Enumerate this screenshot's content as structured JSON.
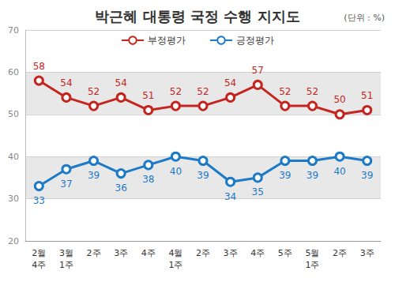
{
  "chart_data": {
    "type": "line",
    "title": "박근혜 대통령 국정 수행 지지도",
    "subtitle": "(단위 : %)",
    "categories": [
      "2월\n4주",
      "3월\n1주",
      "2주",
      "3주",
      "4주",
      "4월\n1주",
      "2주",
      "3주",
      "4주",
      "5주",
      "5월\n1주",
      "2주",
      "3주"
    ],
    "series": [
      {
        "name": "부정평가",
        "color": "#c4251f",
        "values": [
          58,
          54,
          52,
          54,
          51,
          52,
          52,
          54,
          57,
          52,
          52,
          50,
          51
        ]
      },
      {
        "name": "긍정평가",
        "color": "#1d7ac6",
        "values": [
          33,
          37,
          39,
          36,
          38,
          40,
          39,
          34,
          35,
          39,
          39,
          40,
          39
        ]
      }
    ],
    "ylim": [
      20,
      70
    ],
    "yticks": [
      20,
      30,
      40,
      50,
      60,
      70
    ],
    "grid": true,
    "legend": "top",
    "data_labels": true,
    "marker": "circle"
  }
}
